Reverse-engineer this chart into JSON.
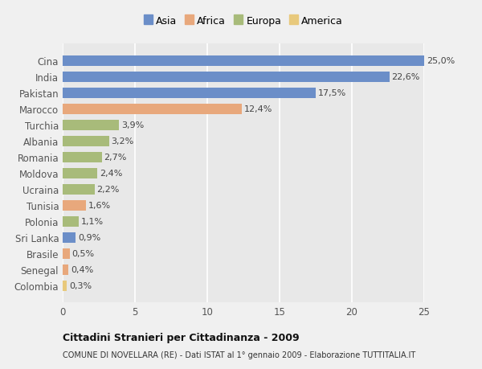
{
  "categories": [
    "Colombia",
    "Senegal",
    "Brasile",
    "Sri Lanka",
    "Polonia",
    "Tunisia",
    "Ucraina",
    "Moldova",
    "Romania",
    "Albania",
    "Turchia",
    "Marocco",
    "Pakistan",
    "India",
    "Cina"
  ],
  "values": [
    0.3,
    0.4,
    0.5,
    0.9,
    1.1,
    1.6,
    2.2,
    2.4,
    2.7,
    3.2,
    3.9,
    12.4,
    17.5,
    22.6,
    25.0
  ],
  "labels": [
    "0,3%",
    "0,4%",
    "0,5%",
    "0,9%",
    "1,1%",
    "1,6%",
    "2,2%",
    "2,4%",
    "2,7%",
    "3,2%",
    "3,9%",
    "12,4%",
    "17,5%",
    "22,6%",
    "25,0%"
  ],
  "colors": [
    "#e8c97c",
    "#e8a87c",
    "#e8a87c",
    "#6b8ec8",
    "#a8bb7a",
    "#e8a87c",
    "#a8bb7a",
    "#a8bb7a",
    "#a8bb7a",
    "#a8bb7a",
    "#a8bb7a",
    "#e8a87c",
    "#6b8ec8",
    "#6b8ec8",
    "#6b8ec8"
  ],
  "legend_labels": [
    "Asia",
    "Africa",
    "Europa",
    "America"
  ],
  "legend_colors": [
    "#6b8ec8",
    "#e8a87c",
    "#a8bb7a",
    "#e8c97c"
  ],
  "xlim": [
    0,
    25
  ],
  "xticks": [
    0,
    5,
    10,
    15,
    20,
    25
  ],
  "title1": "Cittadini Stranieri per Cittadinanza - 2009",
  "title2": "COMUNE DI NOVELLARA (RE) - Dati ISTAT al 1° gennaio 2009 - Elaborazione TUTTITALIA.IT",
  "bg_color": "#f0f0f0",
  "plot_bg": "#e8e8e8",
  "bar_height": 0.65,
  "grid_color": "#ffffff",
  "label_fontsize": 8,
  "tick_fontsize": 8.5,
  "ytick_fontsize": 8.5
}
